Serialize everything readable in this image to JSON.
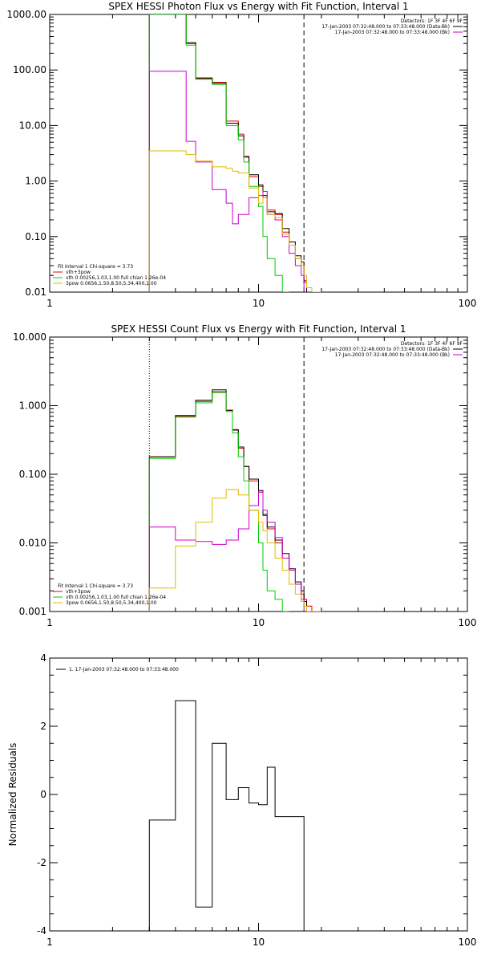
{
  "chart_data": [
    {
      "type": "line",
      "title": "SPEX HESSI Photon Flux vs Energy with Fit Function, Interval 1",
      "xscale": "log",
      "yscale": "log",
      "xlim": [
        1,
        100
      ],
      "ylim": [
        0.01,
        1000
      ],
      "xticks": [
        1,
        10,
        100
      ],
      "xtick_labels": [
        "1",
        "10",
        "100"
      ],
      "yticks": [
        0.01,
        0.1,
        1,
        10,
        100,
        1000
      ],
      "ytick_labels": [
        "0.01",
        "0.10",
        "1.00",
        "10.00",
        "100.00",
        "1000.00"
      ],
      "vlines": [
        {
          "x": 3.0,
          "style": "dotted",
          "color": "#000000"
        },
        {
          "x": 16.5,
          "style": "dashed",
          "color": "#000000"
        }
      ],
      "legend_top": {
        "placement": "top-right",
        "header": "Detectors: 1F 3F 4F 6F 9F",
        "entries": [
          {
            "label": "17-Jan-2003 07:32:48.000 to 07:33:48.000 (Data-Bk)",
            "color": "#000000"
          },
          {
            "label": "17-Jan-2003 07:32:48.000 to 07:33:48.000 (Bk)",
            "color": "#cc00cc"
          }
        ]
      },
      "legend_bottom": {
        "placement": "bottom-left",
        "header": "Fit Interval 1    Chi-square = 3.73",
        "entries": [
          {
            "label": "vth+3pow",
            "color": "#e00000"
          },
          {
            "label": "vth 0.00256,1.03,1.00  full chian 1.26e-04",
            "color": "#00cc00"
          },
          {
            "label": "3pow 0.0656,1.50,8.50,5.34,400,1.00",
            "color": "#ddbb00"
          }
        ]
      },
      "bin_edges": [
        3.0,
        3.5,
        4.0,
        4.5,
        5.0,
        5.5,
        6.0,
        6.5,
        7.0,
        7.5,
        8.0,
        8.5,
        9.0,
        9.5,
        10.0,
        10.5,
        11.0,
        11.5,
        12.0,
        12.5,
        13.0,
        13.5,
        14.0,
        14.5,
        15.0,
        15.5,
        16.0,
        16.5,
        17.0,
        17.5,
        18.0,
        18.5,
        19.0,
        19.5,
        20.0
      ],
      "series": [
        {
          "name": "vth+3pow",
          "color": "#e00000",
          "step": true,
          "x": [
            3.0,
            4.0,
            4.5,
            5.0,
            6.0,
            7.0,
            7.5,
            8.0,
            8.5,
            9.0,
            10.0,
            10.5,
            11.0,
            12.0,
            13.0,
            14.0,
            15.0,
            16.0,
            16.5,
            17.0,
            18.0,
            19.0,
            20.0
          ],
          "values": [
            1000,
            1000,
            300,
            70,
            60,
            12,
            12,
            7,
            2.8,
            1.2,
            0.8,
            0.5,
            0.3,
            0.25,
            0.12,
            0.07,
            0.04,
            0.03,
            0.015,
            0.012,
            0.01,
            0.01,
            0.01
          ]
        },
        {
          "name": "Data-Bk",
          "color": "#000000",
          "step": true,
          "x": [
            3.0,
            4.0,
            4.5,
            5.0,
            6.0,
            7.0,
            7.5,
            8.0,
            8.5,
            9.0,
            10.0,
            10.5,
            11.0,
            12.0,
            13.0,
            14.0,
            15.0,
            16.0,
            16.5,
            17.0
          ],
          "values": [
            1000,
            1000,
            310,
            72,
            58,
            11,
            11,
            6.5,
            2.7,
            1.3,
            0.85,
            0.55,
            0.28,
            0.26,
            0.14,
            0.08,
            0.045,
            0.035,
            0.016,
            0.01
          ]
        },
        {
          "name": "vth",
          "color": "#00cc00",
          "step": true,
          "x": [
            3.0,
            4.0,
            4.5,
            5.0,
            6.0,
            7.0,
            7.5,
            8.0,
            8.5,
            9.0,
            10.0,
            10.5,
            11.0,
            12.0,
            13.0,
            14.0
          ],
          "values": [
            1000,
            1000,
            280,
            68,
            55,
            10,
            10,
            5.5,
            2.2,
            0.8,
            0.35,
            0.1,
            0.04,
            0.02,
            0.01,
            0.01
          ]
        },
        {
          "name": "Bk",
          "color": "#cc00cc",
          "step": true,
          "x": [
            3.0,
            4.0,
            4.5,
            5.0,
            6.0,
            7.0,
            7.5,
            8.0,
            9.0,
            10.0,
            10.5,
            11.0,
            12.0,
            13.0,
            14.0,
            15.0,
            16.0,
            16.5
          ],
          "values": [
            95,
            95,
            5.2,
            2.2,
            0.7,
            0.4,
            0.17,
            0.25,
            0.5,
            0.55,
            0.65,
            0.25,
            0.2,
            0.1,
            0.05,
            0.03,
            0.02,
            0.01
          ]
        },
        {
          "name": "3pow",
          "color": "#ddbb00",
          "step": true,
          "x": [
            3.0,
            4.0,
            4.5,
            5.0,
            6.0,
            7.0,
            7.5,
            8.0,
            9.0,
            10.0,
            10.5,
            11.0,
            12.0,
            13.0,
            14.0,
            15.0,
            16.0,
            16.5,
            17.0,
            18.0,
            19.0,
            20.0
          ],
          "values": [
            3.5,
            3.5,
            3.0,
            2.3,
            1.8,
            1.7,
            1.5,
            1.4,
            0.75,
            0.4,
            0.5,
            0.25,
            0.22,
            0.11,
            0.07,
            0.04,
            0.03,
            0.02,
            0.012,
            0.01,
            0.01,
            0.01
          ]
        }
      ]
    },
    {
      "type": "line",
      "title": "SPEX HESSI Count Flux vs Energy with Fit Function, Interval 1",
      "xscale": "log",
      "yscale": "log",
      "xlim": [
        1,
        100
      ],
      "ylim": [
        0.001,
        10
      ],
      "xticks": [
        1,
        10,
        100
      ],
      "xtick_labels": [
        "1",
        "10",
        "100"
      ],
      "yticks": [
        0.001,
        0.01,
        0.1,
        1,
        10
      ],
      "ytick_labels": [
        "0.001",
        "0.010",
        "0.100",
        "1.000",
        "10.000"
      ],
      "vlines": [
        {
          "x": 3.0,
          "style": "dotted",
          "color": "#000000"
        },
        {
          "x": 16.5,
          "style": "dashed",
          "color": "#000000"
        }
      ],
      "legend_top": {
        "placement": "top-right",
        "header": "Detectors: 1F 3F 4F 6F 9F",
        "entries": [
          {
            "label": "17-Jan-2003 07:32:48.000 to 07:33:48.000 (Data-Bk)",
            "color": "#000000"
          },
          {
            "label": "17-Jan-2003 07:32:48.000 to 07:33:48.000 (Bk)",
            "color": "#cc00cc"
          }
        ]
      },
      "legend_bottom": {
        "placement": "bottom-left",
        "header": "Fit Interval 1    Chi-square = 3.73",
        "entries": [
          {
            "label": "vth+3pow",
            "color": "#e00000"
          },
          {
            "label": "vth 0.00256,1.03,1.00  full chian 1.26e-04",
            "color": "#00cc00"
          },
          {
            "label": "3pow 0.0656,1.50,8.50,5.34,400,1.00",
            "color": "#ddbb00"
          }
        ]
      },
      "series": [
        {
          "name": "vth+3pow",
          "color": "#e00000",
          "step": true,
          "x": [
            3.0,
            4.0,
            5.0,
            6.0,
            7.0,
            7.5,
            8.0,
            8.5,
            9.0,
            10.0,
            10.5,
            11.0,
            12.0,
            13.0,
            14.0,
            15.0,
            16.0,
            16.5,
            17.0,
            18.0,
            19.0,
            20.0
          ],
          "values": [
            0.18,
            0.7,
            1.15,
            1.6,
            0.85,
            0.45,
            0.24,
            0.13,
            0.08,
            0.055,
            0.025,
            0.016,
            0.01,
            0.006,
            0.004,
            0.0025,
            0.0018,
            0.0015,
            0.0012,
            0.001,
            0.001,
            0.001
          ]
        },
        {
          "name": "Data-Bk",
          "color": "#000000",
          "step": true,
          "x": [
            3.0,
            4.0,
            5.0,
            6.0,
            7.0,
            7.5,
            8.0,
            8.5,
            9.0,
            10.0,
            10.5,
            11.0,
            12.0,
            13.0,
            14.0,
            15.0,
            16.0,
            16.5,
            17.0
          ],
          "values": [
            0.18,
            0.72,
            1.2,
            1.7,
            0.86,
            0.44,
            0.25,
            0.13,
            0.085,
            0.058,
            0.026,
            0.017,
            0.011,
            0.007,
            0.0042,
            0.0027,
            0.002,
            0.0014,
            0.001
          ]
        },
        {
          "name": "vth",
          "color": "#00cc00",
          "step": true,
          "x": [
            3.0,
            4.0,
            5.0,
            6.0,
            7.0,
            7.5,
            8.0,
            8.5,
            9.0,
            10.0,
            10.5,
            11.0,
            12.0,
            13.0,
            14.0
          ],
          "values": [
            0.17,
            0.68,
            1.1,
            1.55,
            0.82,
            0.4,
            0.18,
            0.08,
            0.03,
            0.01,
            0.004,
            0.002,
            0.0015,
            0.001,
            0.001
          ]
        },
        {
          "name": "Bk",
          "color": "#cc00cc",
          "step": true,
          "x": [
            3.0,
            4.0,
            5.0,
            6.0,
            7.0,
            8.0,
            9.0,
            10.0,
            10.5,
            11.0,
            12.0,
            13.0,
            14.0,
            15.0,
            16.0,
            16.5
          ],
          "values": [
            0.017,
            0.011,
            0.0105,
            0.0095,
            0.011,
            0.016,
            0.035,
            0.055,
            0.03,
            0.02,
            0.012,
            0.006,
            0.004,
            0.0025,
            0.0015,
            0.001
          ]
        },
        {
          "name": "3pow",
          "color": "#ddbb00",
          "step": true,
          "x": [
            3.0,
            4.0,
            5.0,
            6.0,
            7.0,
            8.0,
            9.0,
            10.0,
            10.5,
            11.0,
            12.0,
            13.0,
            14.0,
            15.0,
            16.0,
            16.5,
            17.0,
            18.0,
            19.0,
            20.0
          ],
          "values": [
            0.0022,
            0.009,
            0.02,
            0.045,
            0.06,
            0.05,
            0.03,
            0.02,
            0.015,
            0.01,
            0.006,
            0.004,
            0.0025,
            0.0018,
            0.0014,
            0.0012,
            0.001,
            0.001,
            0.001,
            0.001
          ]
        }
      ]
    },
    {
      "type": "line",
      "title": "",
      "xscale": "log",
      "yscale": "linear",
      "xlim": [
        1,
        100
      ],
      "ylim": [
        -4,
        4
      ],
      "xticks": [
        1,
        10,
        100
      ],
      "xtick_labels": [
        "1",
        "10",
        "100"
      ],
      "yticks": [
        -4,
        -2,
        0,
        2,
        4
      ],
      "ytick_labels": [
        "-4",
        "-2",
        "0",
        "2",
        "4"
      ],
      "ylabel": "Normalized Residuals",
      "legend": {
        "placement": "top-left",
        "entries": [
          {
            "label": "1. 17-Jan-2003 07:32:48.000 to 07:33:48.000",
            "color": "#000000"
          }
        ]
      },
      "series": [
        {
          "name": "1. 17-Jan-2003 07:32:48.000 to 07:33:48.000",
          "color": "#000000",
          "step": true,
          "x": [
            3.0,
            4.0,
            4.5,
            5.0,
            5.5,
            6.0,
            6.5,
            7.0,
            7.5,
            8.0,
            8.5,
            9.0,
            9.5,
            10.0,
            10.5,
            11.0,
            11.5,
            12.0,
            12.5,
            13.0,
            13.5,
            14.0,
            14.5,
            15.0,
            15.5,
            16.0,
            16.5
          ],
          "values": [
            -0.75,
            2.75,
            2.75,
            -3.3,
            -3.3,
            1.5,
            1.5,
            -0.15,
            -0.15,
            0.2,
            0.2,
            -0.25,
            -0.25,
            -0.3,
            -0.3,
            0.8,
            0.8,
            -0.65,
            -0.65,
            -0.65,
            -0.65,
            -0.65,
            -0.65,
            -0.65,
            -0.65,
            -0.65,
            -4
          ]
        }
      ]
    }
  ]
}
